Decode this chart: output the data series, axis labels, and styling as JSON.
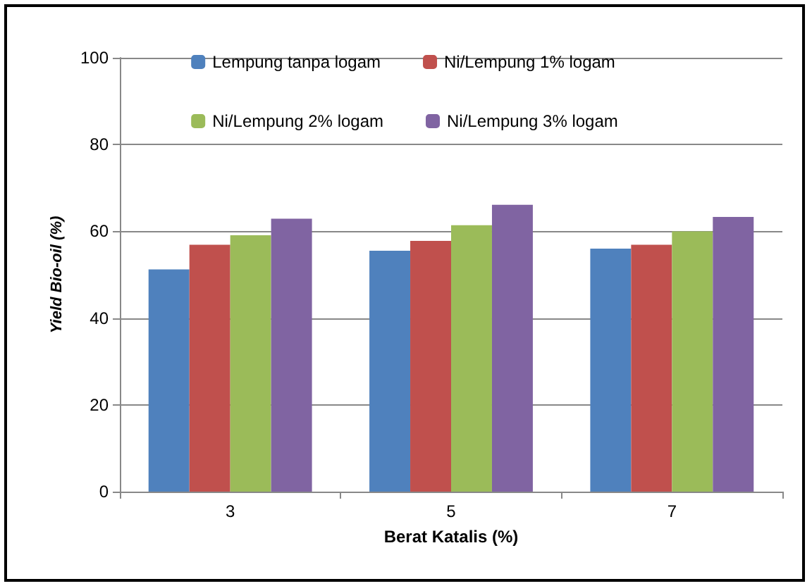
{
  "chart_data": {
    "type": "bar",
    "xlabel": "Berat Katalis (%)",
    "ylabel": "Yield Bio-oil (%)",
    "categories": [
      "3",
      "5",
      "7"
    ],
    "series": [
      {
        "name": "Lempung tanpa logam",
        "color": "#4f81bd",
        "values": [
          51.2,
          55.5,
          56.0
        ]
      },
      {
        "name": "Ni/Lempung 1% logam",
        "color": "#c0504d",
        "values": [
          56.9,
          57.8,
          56.9
        ]
      },
      {
        "name": "Ni/Lempung 2% logam",
        "color": "#9bbb59",
        "values": [
          59.1,
          61.4,
          60.0
        ]
      },
      {
        "name": "Ni/Lempung 3% logam",
        "color": "#8064a2",
        "values": [
          62.9,
          66.1,
          63.3
        ]
      }
    ],
    "ylim": [
      0,
      100
    ],
    "yticks": [
      0,
      20,
      40,
      60,
      80,
      100
    ],
    "grid": "y",
    "legend": "top"
  }
}
